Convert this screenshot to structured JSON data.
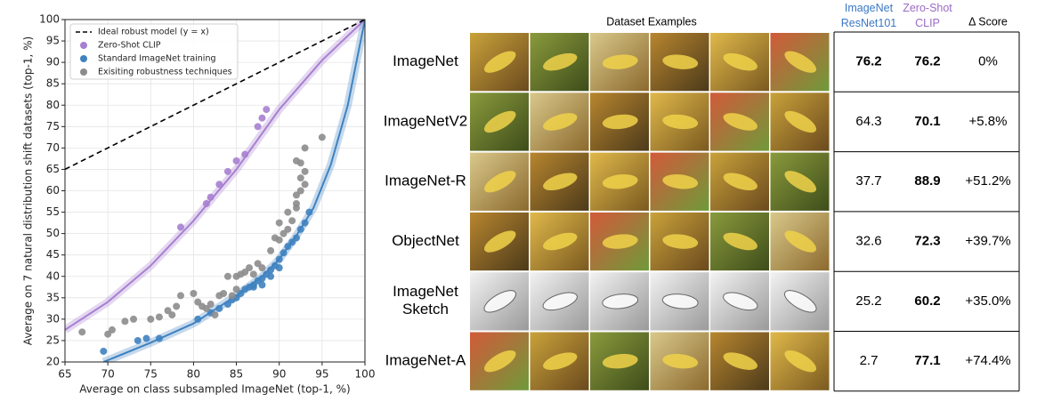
{
  "chart_data": {
    "type": "scatter",
    "xlabel": "Average on class subsampled ImageNet (top-1, %)",
    "ylabel": "Average on 7 natural distribution shift datasets (top-1, %)",
    "xlim": [
      65,
      100
    ],
    "xticks": [
      65,
      70,
      75,
      80,
      85,
      90,
      95,
      100
    ],
    "ylim": [
      20,
      100
    ],
    "yticks": [
      20,
      25,
      30,
      35,
      40,
      45,
      50,
      55,
      60,
      65,
      70,
      75,
      80,
      85,
      90,
      95,
      100
    ],
    "grid": true,
    "legend": "upper left",
    "series": [
      {
        "name": "Ideal robust model (y = x)",
        "color": "#000000",
        "line": "dashed",
        "x": [
          65,
          100
        ],
        "values": [
          65,
          100
        ]
      },
      {
        "name": "Zero-Shot CLIP",
        "color": "#a77fd0",
        "x": [
          78.5,
          81.5,
          82,
          83,
          84,
          85,
          86,
          87.5,
          88,
          88.5
        ],
        "values": [
          51.5,
          57,
          58.5,
          61.5,
          64.5,
          67,
          68.5,
          75,
          77,
          79
        ],
        "fit": {
          "x": [
            65,
            70,
            75,
            80,
            85,
            90,
            95,
            100
          ],
          "values": [
            27.5,
            34,
            42.5,
            53,
            65,
            79,
            90.5,
            100
          ]
        }
      },
      {
        "name": "Standard ImageNet training",
        "color": "#3f82c0",
        "x": [
          69.5,
          73.5,
          74.5,
          76,
          80.5,
          82,
          83,
          84,
          84.5,
          85,
          85.5,
          86,
          86.5,
          87,
          87.5,
          88,
          88.5,
          89,
          89.5,
          90,
          90.5,
          91,
          91.5,
          92,
          92.5,
          93,
          93.5,
          88,
          87,
          89,
          90
        ],
        "values": [
          22.5,
          25,
          25.5,
          25.5,
          30,
          31.5,
          32.5,
          33.5,
          34.5,
          35,
          36,
          37,
          37.5,
          38,
          39,
          39.5,
          40.5,
          41.5,
          42.5,
          44,
          45.5,
          47,
          48,
          49,
          51,
          52.5,
          55,
          38,
          37.5,
          40,
          42
        ],
        "fit": {
          "x": [
            69.5,
            75,
            80,
            85,
            88,
            90,
            92,
            94,
            96,
            98,
            100
          ],
          "values": [
            20,
            24.5,
            29,
            35.5,
            40,
            44,
            49.5,
            56,
            66,
            80,
            100
          ]
        }
      },
      {
        "name": "Exisiting robustness techniques",
        "color": "#8c8c8c",
        "x": [
          67,
          70,
          70.5,
          72,
          73,
          75,
          76,
          77,
          77.5,
          78,
          78.5,
          80,
          80.5,
          81,
          81.5,
          82,
          82.5,
          83,
          83.5,
          84,
          84.5,
          85,
          85,
          86,
          86.5,
          87,
          87.5,
          88,
          89,
          89.5,
          90,
          90.5,
          91,
          91.5,
          92,
          92,
          92.5,
          92.5,
          93,
          93,
          92,
          92.5,
          93,
          95,
          92,
          91,
          90,
          85.5
        ],
        "values": [
          27,
          26.5,
          27.5,
          29.5,
          30,
          30,
          30.5,
          32,
          31,
          33,
          35.5,
          36,
          34,
          33,
          32.5,
          33.5,
          31,
          35.5,
          36,
          40,
          35.5,
          37,
          40,
          41,
          42,
          40.5,
          43,
          42,
          46,
          49,
          48.5,
          50,
          55,
          53,
          56,
          59,
          63,
          60,
          61.5,
          64.5,
          67,
          66.5,
          70,
          72.5,
          57,
          51,
          52.5,
          40.5
        ]
      }
    ]
  },
  "table": {
    "headers": [
      "Dataset Examples",
      "ImageNet ResNet101",
      "Zero-Shot CLIP",
      "Δ Score"
    ],
    "rows": [
      [
        "ImageNet",
        "76.2",
        "76.2",
        "0%"
      ],
      [
        "ImageNetV2",
        "64.3",
        "70.1",
        "+5.8%"
      ],
      [
        "ImageNet-R",
        "37.7",
        "88.9",
        "+51.2%"
      ],
      [
        "ObjectNet",
        "32.6",
        "72.3",
        "+39.7%"
      ],
      [
        "ImageNet Sketch",
        "25.2",
        "60.2",
        "+35.0%"
      ],
      [
        "ImageNet-A",
        "2.7",
        "77.1",
        "+74.4%"
      ]
    ]
  }
}
